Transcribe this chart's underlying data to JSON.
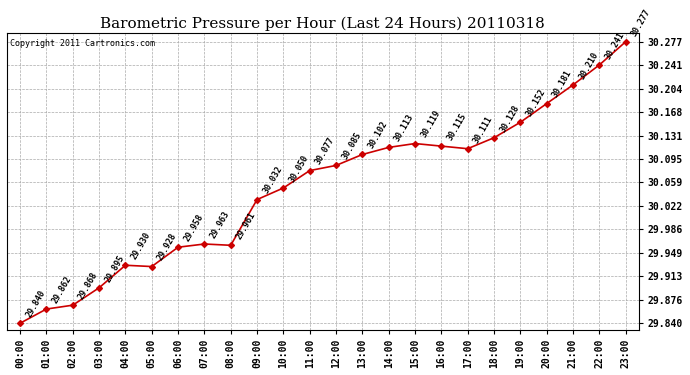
{
  "title": "Barometric Pressure per Hour (Last 24 Hours) 20110318",
  "copyright": "Copyright 2011 Cartronics.com",
  "hours": [
    "00:00",
    "01:00",
    "02:00",
    "03:00",
    "04:00",
    "05:00",
    "06:00",
    "07:00",
    "08:00",
    "09:00",
    "10:00",
    "11:00",
    "12:00",
    "13:00",
    "14:00",
    "15:00",
    "16:00",
    "17:00",
    "18:00",
    "19:00",
    "20:00",
    "21:00",
    "22:00",
    "23:00"
  ],
  "values": [
    29.84,
    29.862,
    29.868,
    29.895,
    29.93,
    29.928,
    29.958,
    29.963,
    29.961,
    30.032,
    30.05,
    30.077,
    30.085,
    30.102,
    30.113,
    30.119,
    30.115,
    30.111,
    30.128,
    30.152,
    30.181,
    30.21,
    30.241,
    30.277
  ],
  "ylim_min": 29.83,
  "ylim_max": 30.29,
  "line_color": "#cc0000",
  "marker": "D",
  "markersize": 3,
  "bg_color": "#ffffff",
  "grid_color": "#aaaaaa",
  "title_fontsize": 11,
  "tick_fontsize": 7,
  "annotation_fontsize": 6,
  "yticks": [
    29.84,
    29.876,
    29.913,
    29.949,
    29.986,
    30.022,
    30.059,
    30.095,
    30.131,
    30.168,
    30.204,
    30.241,
    30.277
  ]
}
